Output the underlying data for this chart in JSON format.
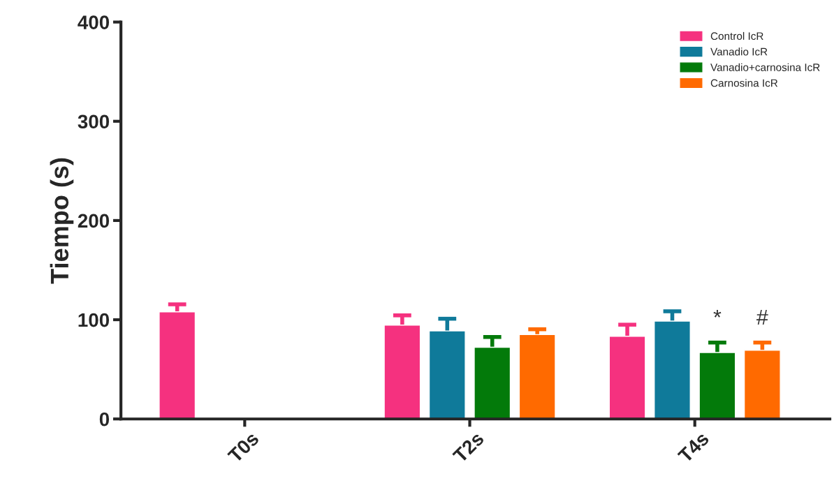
{
  "chart_data": {
    "type": "bar",
    "ylabel": "Tiempo (s)",
    "categories": [
      "T0s",
      "T2s",
      "T4s"
    ],
    "series": [
      {
        "name": "Control IcR",
        "color": "#f5317f",
        "values": [
          108,
          94.6,
          83.3
        ],
        "errors": [
          [
            108,
            115.5
          ],
          [
            94.6,
            104.4
          ],
          [
            83.3,
            95
          ]
        ]
      },
      {
        "name": "Vanadio IcR",
        "color": "#0f7a9a",
        "values": [
          null,
          88.7,
          98.6
        ],
        "errors": [
          null,
          [
            88.7,
            101
          ],
          [
            98.6,
            108.5
          ]
        ]
      },
      {
        "name": "Vanadio+carnosina IcR",
        "color": "#037a0a",
        "values": [
          null,
          72.3,
          67
        ],
        "errors": [
          null,
          [
            72.3,
            82.6
          ],
          [
            67,
            77
          ]
        ]
      },
      {
        "name": "Carnosina IcR",
        "color": "#ff6a00",
        "values": [
          null,
          85,
          69.2
        ],
        "errors": [
          null,
          [
            85,
            90.4
          ],
          [
            69.2,
            77
          ]
        ]
      }
    ],
    "ylim": [
      0,
      400
    ],
    "yticks": [
      0,
      100,
      200,
      300,
      400
    ],
    "grid": false,
    "legend": "top right",
    "annotations": [
      "*",
      "#"
    ]
  }
}
